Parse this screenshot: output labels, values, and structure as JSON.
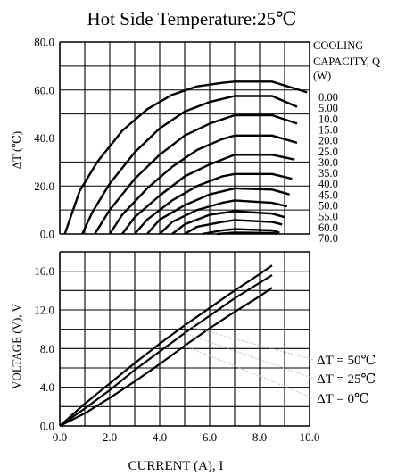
{
  "chart_data": [
    {
      "type": "line",
      "title": "Hot Side Temperature:25℃",
      "ylabel": "ΔT (℃)",
      "ylim": [
        0,
        80
      ],
      "yticks": [
        "0.0",
        "20.0",
        "40.0",
        "60.0",
        "80.0"
      ],
      "xlim": [
        0,
        10
      ],
      "grid": true,
      "legend_title": [
        "COOLING",
        "CAPACITY, Q",
        "(W)"
      ],
      "legend_placement": "right",
      "series": [
        {
          "name": "0.00",
          "points": [
            [
              0.2,
              0
            ],
            [
              0.8,
              18
            ],
            [
              1.5,
              30
            ],
            [
              2.5,
              43
            ],
            [
              3.5,
              52
            ],
            [
              4.5,
              58
            ],
            [
              5.5,
              61.5
            ],
            [
              6.5,
              63
            ],
            [
              7,
              63.5
            ],
            [
              8.5,
              63.5
            ],
            [
              9.9,
              59
            ]
          ]
        },
        {
          "name": "5.00",
          "points": [
            [
              0.9,
              0
            ],
            [
              1.3,
              9
            ],
            [
              2,
              21
            ],
            [
              3,
              34
            ],
            [
              4,
              44
            ],
            [
              5,
              51
            ],
            [
              6,
              55
            ],
            [
              7,
              57.5
            ],
            [
              8.5,
              57.5
            ],
            [
              9.5,
              53
            ]
          ]
        },
        {
          "name": "10.0",
          "points": [
            [
              1.4,
              0
            ],
            [
              2,
              10
            ],
            [
              3,
              23
            ],
            [
              4,
              33
            ],
            [
              5,
              41
            ],
            [
              6,
              46
            ],
            [
              7,
              49.5
            ],
            [
              8.5,
              49.5
            ],
            [
              9.5,
              46
            ]
          ]
        },
        {
          "name": "15.0",
          "points": [
            [
              2,
              0
            ],
            [
              2.5,
              8
            ],
            [
              3.5,
              19
            ],
            [
              4.5,
              28
            ],
            [
              5.5,
              35
            ],
            [
              6.5,
              39.5
            ],
            [
              7,
              41
            ],
            [
              8.5,
              41
            ],
            [
              9.5,
              38
            ]
          ]
        },
        {
          "name": "20.0",
          "points": [
            [
              2.5,
              0
            ],
            [
              3,
              7
            ],
            [
              4,
              16
            ],
            [
              5,
              24
            ],
            [
              6,
              29
            ],
            [
              7,
              33
            ],
            [
              8.5,
              33
            ],
            [
              9.4,
              31
            ]
          ]
        },
        {
          "name": "25.0",
          "points": [
            [
              3,
              0
            ],
            [
              3.5,
              6
            ],
            [
              4.5,
              14
            ],
            [
              5.5,
              20
            ],
            [
              6.5,
              24
            ],
            [
              7,
              25
            ],
            [
              8.5,
              25
            ],
            [
              9.3,
              23
            ]
          ]
        },
        {
          "name": "30.0",
          "points": [
            [
              3.5,
              0
            ],
            [
              4,
              6
            ],
            [
              5,
              12
            ],
            [
              6,
              16.5
            ],
            [
              7,
              19
            ],
            [
              8.5,
              18.5
            ],
            [
              9.2,
              16.5
            ]
          ]
        },
        {
          "name": "35.0",
          "points": [
            [
              4,
              0
            ],
            [
              4.5,
              5
            ],
            [
              5.5,
              10
            ],
            [
              6.5,
              13
            ],
            [
              7,
              14
            ],
            [
              8.5,
              13
            ],
            [
              9.1,
              11.5
            ]
          ]
        },
        {
          "name": "40.0",
          "points": [
            [
              4.5,
              0
            ],
            [
              5,
              4
            ],
            [
              6,
              8
            ],
            [
              7,
              9.5
            ],
            [
              8.5,
              8.5
            ],
            [
              9,
              7
            ]
          ]
        },
        {
          "name": "45.0",
          "points": [
            [
              5,
              0
            ],
            [
              5.5,
              3
            ],
            [
              6.5,
              5
            ],
            [
              7,
              5.8
            ],
            [
              8.5,
              5
            ],
            [
              8.9,
              4
            ]
          ]
        },
        {
          "name": "50.0",
          "points": [
            [
              5.7,
              0
            ],
            [
              6.5,
              1.5
            ],
            [
              7,
              2
            ],
            [
              8.5,
              1.5
            ],
            [
              8.8,
              0.5
            ]
          ]
        },
        {
          "name": "55.0",
          "points": [
            [
              6.3,
              0
            ],
            [
              7,
              0.6
            ],
            [
              8.5,
              0.4
            ],
            [
              8.7,
              0
            ]
          ]
        },
        {
          "name": "60.0",
          "points": []
        },
        {
          "name": "70.0",
          "points": []
        }
      ]
    },
    {
      "type": "line",
      "ylabel": "VOLTAGE (V), V",
      "xlabel": "CURRENT (A), I",
      "ylim": [
        0,
        18
      ],
      "yticks": [
        "0.0",
        "4.0",
        "8.0",
        "12.0",
        "16.0"
      ],
      "xlim": [
        0,
        10
      ],
      "xticks": [
        "0.0",
        "2.0",
        "4.0",
        "6.0",
        "8.0",
        "10.0"
      ],
      "grid": true,
      "legend_placement": "right",
      "series": [
        {
          "name": "ΔT = 50℃",
          "points": [
            [
              0,
              0
            ],
            [
              1,
              2.3
            ],
            [
              2,
              4.4
            ],
            [
              3,
              6.5
            ],
            [
              4,
              8.5
            ],
            [
              5,
              10.4
            ],
            [
              6,
              12.2
            ],
            [
              7,
              14
            ],
            [
              8,
              15.7
            ],
            [
              8.5,
              16.6
            ]
          ]
        },
        {
          "name": "ΔT = 25℃",
          "points": [
            [
              0,
              0
            ],
            [
              1,
              1.8
            ],
            [
              2,
              3.7
            ],
            [
              3,
              5.8
            ],
            [
              4,
              7.7
            ],
            [
              5,
              9.6
            ],
            [
              6,
              11.4
            ],
            [
              7,
              13.2
            ],
            [
              8,
              14.8
            ],
            [
              8.5,
              15.6
            ]
          ]
        },
        {
          "name": "ΔT = 0℃",
          "points": [
            [
              0,
              0
            ],
            [
              1,
              1.3
            ],
            [
              2,
              2.9
            ],
            [
              3,
              4.6
            ],
            [
              4,
              6.4
            ],
            [
              5,
              8.3
            ],
            [
              6,
              10.1
            ],
            [
              7,
              11.8
            ],
            [
              8,
              13.4
            ],
            [
              8.5,
              14.3
            ]
          ]
        }
      ]
    }
  ]
}
